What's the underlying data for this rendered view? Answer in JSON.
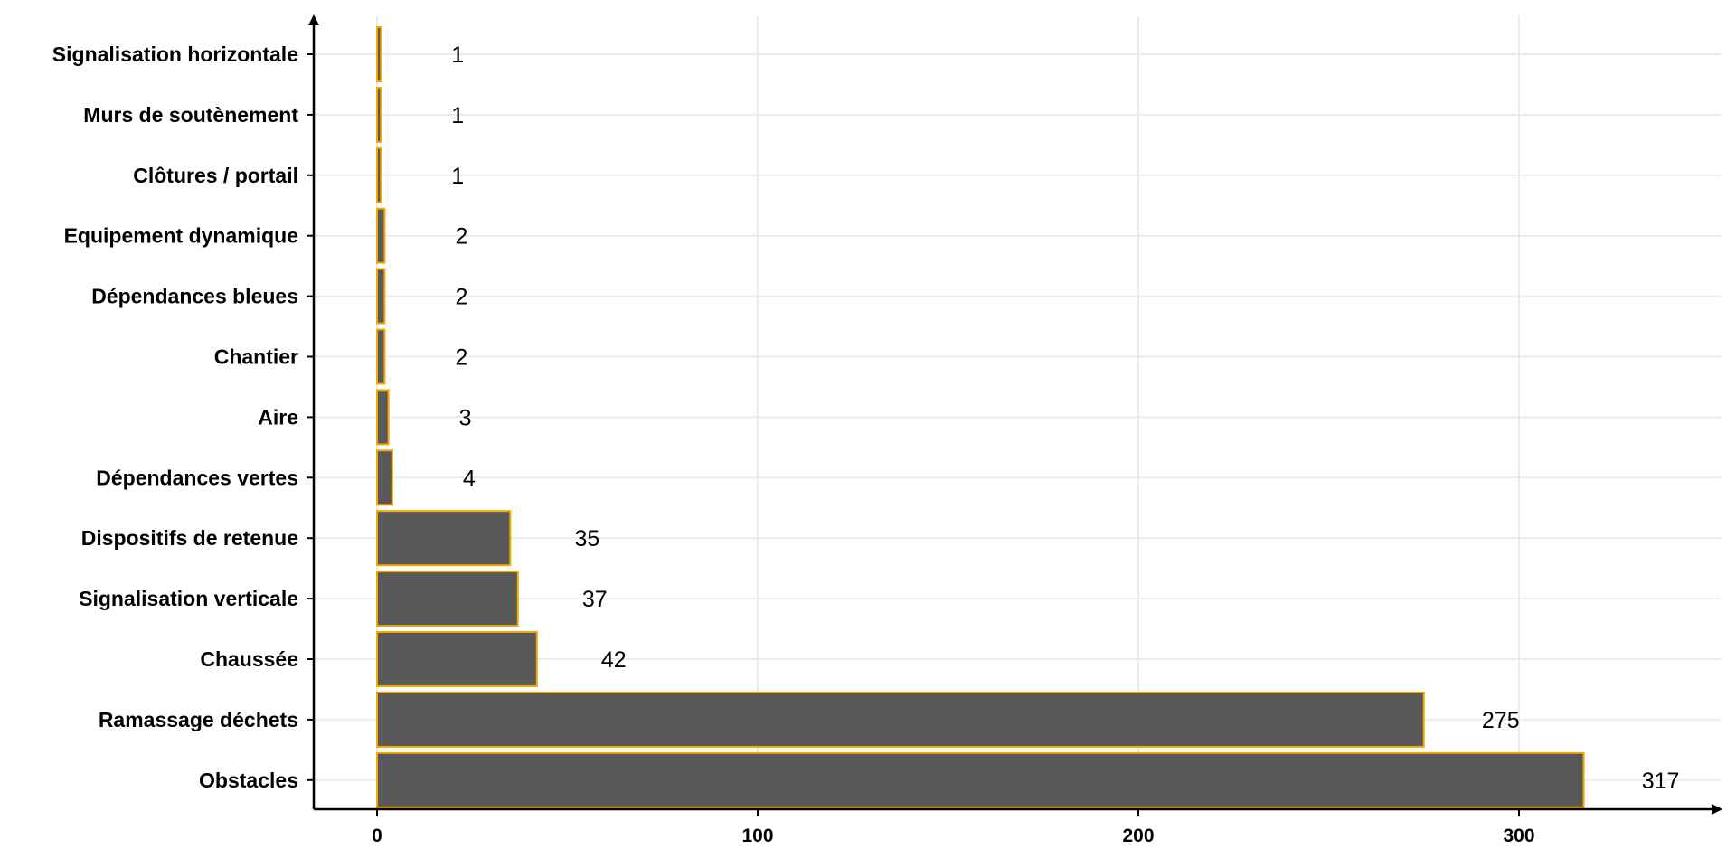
{
  "chart_data": {
    "type": "bar",
    "orientation": "horizontal",
    "categories": [
      "Obstacles",
      "Ramassage déchets",
      "Chaussée",
      "Signalisation verticale",
      "Dispositifs de retenue",
      "Dépendances vertes",
      "Aire",
      "Chantier",
      "Dépendances bleues",
      "Equipement dynamique",
      "Clôtures / portail",
      "Murs de soutènement",
      "Signalisation horizontale"
    ],
    "values": [
      317,
      275,
      42,
      37,
      35,
      4,
      3,
      2,
      2,
      2,
      1,
      1,
      1
    ],
    "data_labels": [
      "317",
      "275",
      "42",
      "37",
      "35",
      "4",
      "3",
      "2",
      "2",
      "2",
      "1",
      "1",
      "1"
    ],
    "x_ticks": [
      "0",
      "100",
      "200",
      "300"
    ],
    "x_tick_values": [
      0,
      100,
      200,
      300
    ],
    "xlim": [
      -17,
      355
    ],
    "title": "",
    "xlabel": "",
    "ylabel": "",
    "grid": true,
    "legend": "none",
    "colors": {
      "bar_fill": "#595959",
      "bar_stroke": "#f5a800",
      "grid": "#ebebeb",
      "axis": "#000000"
    }
  }
}
